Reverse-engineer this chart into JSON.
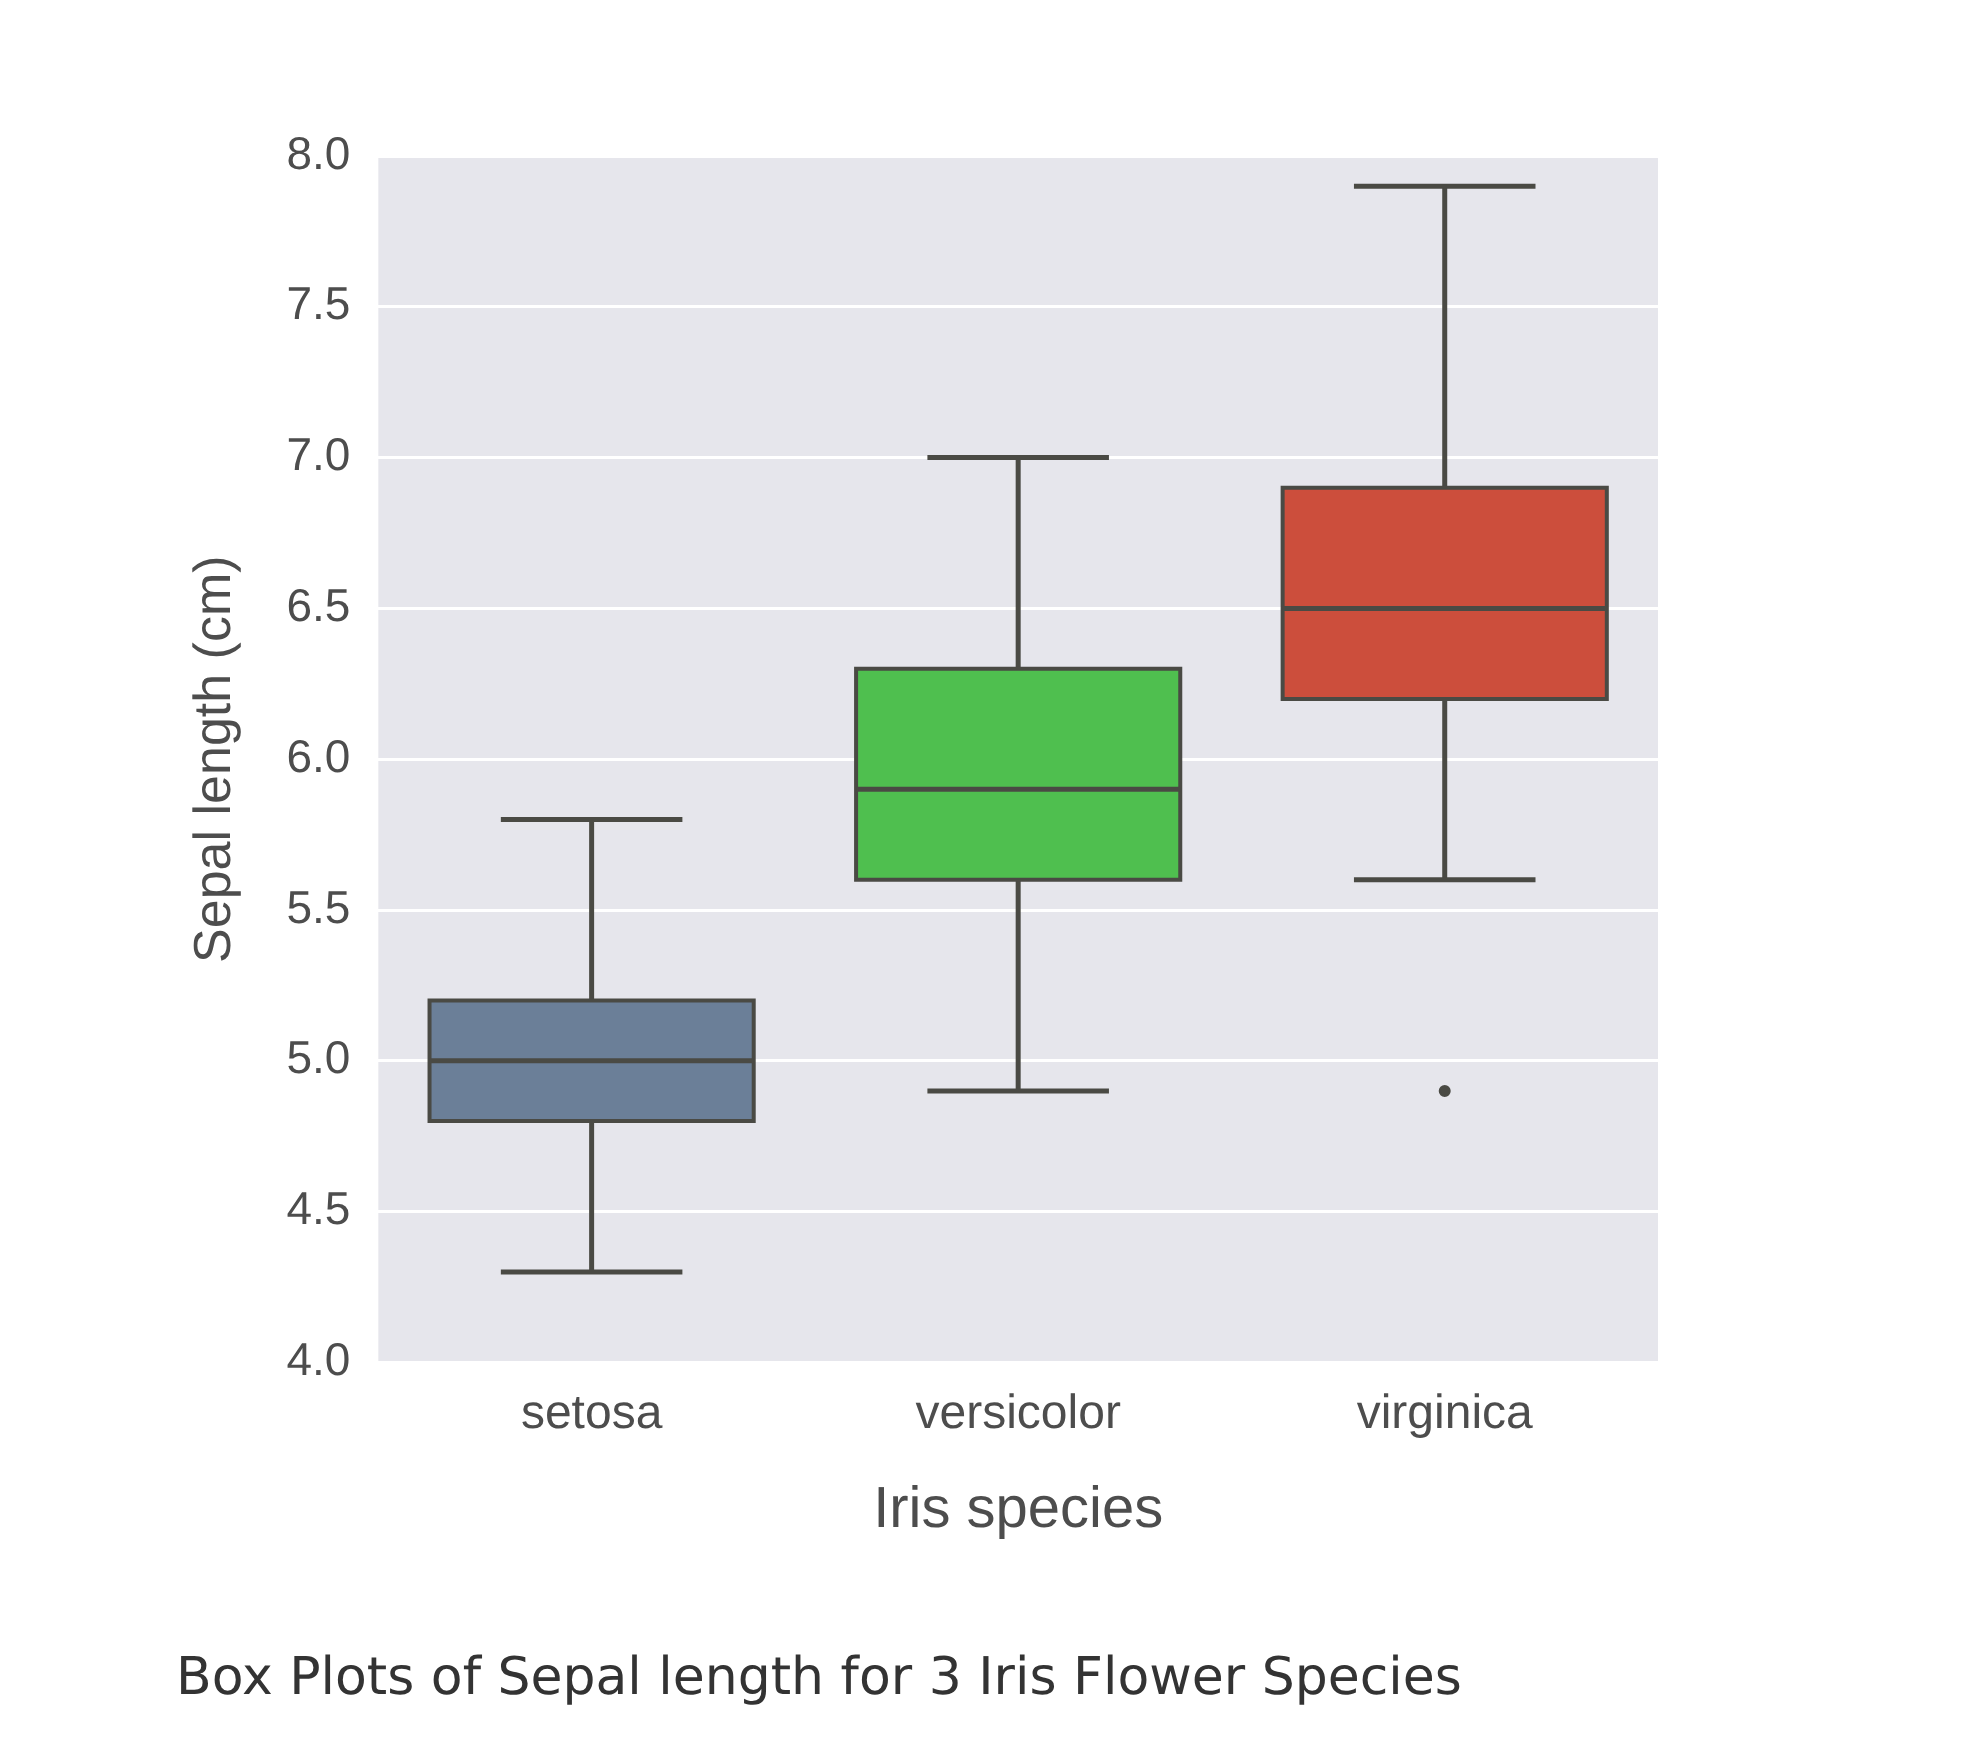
{
  "chart_data": {
    "type": "box",
    "title": "Box Plots of Sepal length for 3 Iris Flower Species",
    "xlabel": "Iris species",
    "ylabel": "Sepal length (cm)",
    "categories": [
      "setosa",
      "versicolor",
      "virginica"
    ],
    "colors": [
      "#6b7f98",
      "#4fbf4f",
      "#cc4e3c"
    ],
    "boxes": [
      {
        "low": 4.3,
        "q1": 4.8,
        "median": 5.0,
        "q3": 5.2,
        "high": 5.8
      },
      {
        "low": 4.9,
        "q1": 5.6,
        "median": 5.9,
        "q3": 6.3,
        "high": 7.0
      },
      {
        "low": 5.6,
        "q1": 6.2,
        "median": 6.5,
        "q3": 6.9,
        "high": 7.9,
        "outliers": [
          4.9
        ]
      }
    ],
    "ylim": [
      4,
      8
    ],
    "yticks": [
      {
        "value": 4,
        "label": "4.0"
      },
      4.5,
      {
        "value": 5,
        "label": "5.0"
      },
      5.5,
      {
        "value": 6,
        "label": "6.0"
      },
      6.5,
      {
        "value": 7,
        "label": "7.0"
      },
      7.5,
      {
        "value": 8,
        "label": "8.0"
      }
    ],
    "grid": "y"
  }
}
